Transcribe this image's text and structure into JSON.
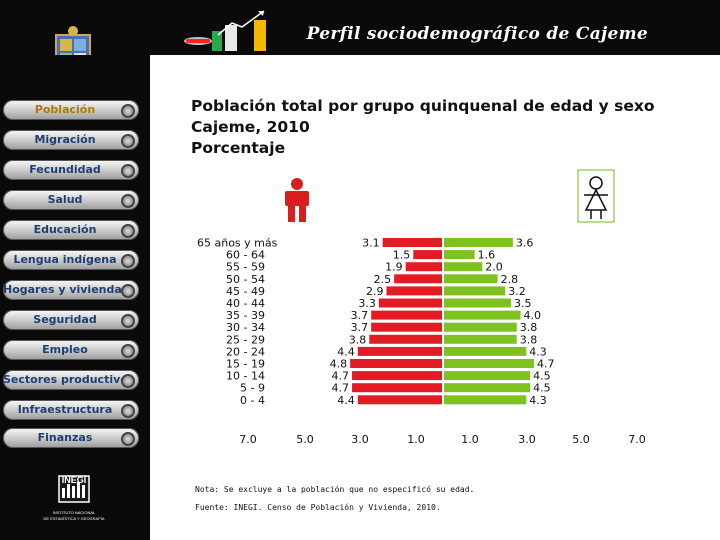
{
  "header": {
    "title": "Perfil sociodemográfico de Cajeme"
  },
  "sidebar": {
    "items": [
      {
        "label": "Población",
        "active": true
      },
      {
        "label": "Migración"
      },
      {
        "label": "Fecundidad"
      },
      {
        "label": "Salud"
      },
      {
        "label": "Educación"
      },
      {
        "label": "Lengua indígena"
      },
      {
        "label": "Hogares y viviendas"
      },
      {
        "label": "Seguridad"
      },
      {
        "label": "Empleo"
      },
      {
        "label": "Sectores productivos"
      },
      {
        "label": "Infraestructura"
      },
      {
        "label": "Finanzas"
      }
    ]
  },
  "chart": {
    "title_line1": "Población total por grupo quinquenal de edad y sexo",
    "title_line2": "Cajeme, 2010",
    "title_line3": "Porcentaje",
    "note": "Nota: Se excluye a la población que no especificó su edad.",
    "source": "Fuente: INEGI. Censo de Población y Vivienda, 2010."
  },
  "logo": {
    "text": "INEGI",
    "subtitle_line1": "INSTITUTO NACIONAL",
    "subtitle_line2": "DE ESTADÍSTICA Y GEOGRAFÍA"
  },
  "colors": {
    "male": "#e31c23",
    "female": "#7dc21e",
    "background": "#0a0a0a"
  },
  "chart_data": {
    "type": "bar",
    "orientation": "horizontal-pyramid",
    "categories": [
      "65 años y más",
      "60 - 64",
      "55 - 59",
      "50 - 54",
      "45 - 49",
      "40 - 44",
      "35 - 39",
      "30 - 34",
      "25 - 29",
      "20 - 24",
      "15 - 19",
      "10 - 14",
      "5 - 9",
      "0 - 4"
    ],
    "series": [
      {
        "sex": "male",
        "values": [
          3.1,
          1.5,
          1.9,
          2.5,
          2.9,
          3.3,
          3.7,
          3.7,
          3.8,
          4.4,
          4.8,
          4.7,
          4.7,
          4.4
        ],
        "value_labels": [
          "3.1",
          "1.5",
          "1.9",
          "2.5",
          "2.9",
          "3.3",
          "3.7",
          "3.7",
          "3.8",
          "4.4",
          "4.8",
          "4.7",
          "4.7",
          "4.4"
        ]
      },
      {
        "sex": "female",
        "values": [
          3.6,
          1.6,
          2.0,
          2.8,
          3.2,
          3.5,
          4.0,
          3.8,
          3.8,
          4.3,
          4.7,
          4.5,
          4.5,
          4.3
        ],
        "value_labels": [
          "3.6",
          "1.6",
          "2.0",
          "2.8",
          "3.2",
          "3.5",
          "4.0",
          "3.8",
          "3.8",
          "4.3",
          "4.7",
          "4.5",
          "4.5",
          "4.3"
        ]
      }
    ],
    "xticks_left": [
      "7.0",
      "5.0",
      "3.0",
      "1.0"
    ],
    "xticks_right": [
      "1.0",
      "3.0",
      "5.0",
      "7.0"
    ],
    "xlim": [
      0,
      7
    ]
  }
}
